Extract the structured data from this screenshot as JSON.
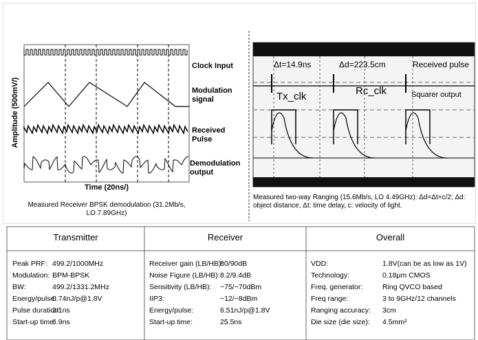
{
  "left_figure": {
    "y_axis_label": "Amplitude (500mV/)",
    "x_axis_label": "Time (20ns/)",
    "trace_labels": [
      "Clock Input",
      "Modulation signal",
      "Received Pulse",
      "Demodulation output"
    ],
    "caption": "Measured Receiver BPSK demodulation (31.2Mb/s, LO 7.89GHz)"
  },
  "right_figure": {
    "annotations": {
      "delta_t": "Δt=14.9ns",
      "delta_d": "Δd=223.5cm",
      "received_pulse": "Received pulse",
      "tx_clk": "Tx_clk",
      "rc_clk": "Rc_clk",
      "squarer_output": "Squarer output"
    },
    "caption": "Measured two-way Ranging (15.6Mb/s, LO 4.49GHz): Δd=Δt×c/2; Δd: object distance, Δt: time delay, c: velocity of light."
  },
  "table": {
    "headers": [
      "Transmitter",
      "Receiver",
      "Overall"
    ],
    "columns": [
      [
        [
          "Peak PRF:",
          "499.2/1000MHz"
        ],
        [
          "Modulation:",
          "BPM-BPSK"
        ],
        [
          "BW:",
          "499.2/1331.2MHz"
        ],
        [
          "Energy/pulse:",
          "0.74nJ/p@1.8V"
        ],
        [
          "Pulse duration:",
          "2/1ns"
        ],
        [
          "Start-up time:",
          "6.9ns"
        ]
      ],
      [
        [
          "Receiver gain (LB/HB):",
          "80/90dB"
        ],
        [
          "Noise Figure (LB/HB):",
          "8.2/9.4dB"
        ],
        [
          "Sensitivity (LB/HB):",
          "−75/−70dBm"
        ],
        [
          "IIP3:",
          "−12/−8dBm"
        ],
        [
          "Energy/pulse:",
          "6.51nJ/p@1.8V"
        ],
        [
          "Start-up time:",
          "25.5ns"
        ]
      ],
      [
        [
          "VDD:",
          "1.8V(can be as low as 1V)"
        ],
        [
          "Technology:",
          "0.18μm CMOS"
        ],
        [
          "Freq. generator:",
          "Ring QVCO based"
        ],
        [
          "Freq range:",
          "3 to 9GHz/12 channels"
        ],
        [
          "Ranging accuracy:",
          "3cm"
        ],
        [
          "Die size (die size):",
          "4.5mm²"
        ]
      ]
    ]
  }
}
